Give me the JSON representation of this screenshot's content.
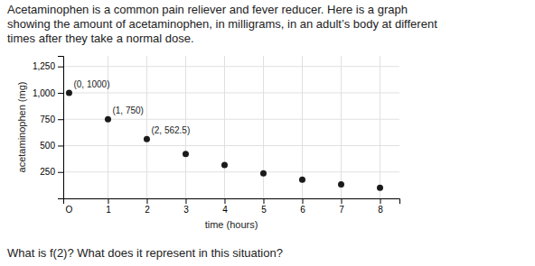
{
  "chart_data": {
    "type": "scatter",
    "title": [
      "Acetaminophen is a common pain reliever and fever reducer.  Here is a graph",
      "showing the amount of acetaminophen, in milligrams, in an adult’s body at different",
      "times after they take a normal dose."
    ],
    "caption": "What is f(2)?  What does it represent in this situation?",
    "x": [
      0,
      1,
      2,
      3,
      4,
      5,
      6,
      7,
      8
    ],
    "y": [
      1000,
      750,
      562.5,
      421.875,
      316.406,
      237.305,
      177.979,
      133.484,
      100.113
    ],
    "color": "#1a1a1a",
    "annotations": [
      {
        "text": "(0, 1000)",
        "x": 0,
        "y": 1000
      },
      {
        "text": "(1, 750)",
        "x": 1,
        "y": 750
      },
      {
        "text": "(2, 562.5)",
        "x": 2,
        "y": 562.5
      }
    ],
    "origin_label": "O",
    "x_label": "time (hours)",
    "y_label": "acetaminophen (mg)",
    "xlim": [
      -0.15,
      8.5
    ],
    "ylim": [
      0,
      1350
    ],
    "xticks": [
      1,
      2,
      3,
      4,
      5,
      6,
      7,
      8
    ],
    "yticks": [
      250,
      500,
      750,
      {
        "value": 1000,
        "label": "1,000"
      },
      {
        "value": 1250,
        "label": "1,250"
      }
    ],
    "grid": true
  }
}
